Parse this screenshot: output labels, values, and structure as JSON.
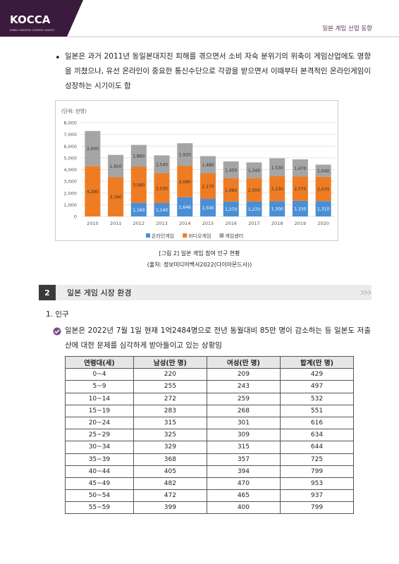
{
  "header": {
    "logo": "KOCCA",
    "logo_sub": "KOREA CREATIVE CONTENT AGENCY",
    "title": "일본 게임 산업 동향"
  },
  "bullet": "일본은 과거 2011년 동일본대지진 피해를 겪으면서 소비 자숙 분위기의 위축이 게임산업에도 영향을 끼쳤으나, 유선 온라인이 중요한 통신수단으로 각광을 받으면서 이때부터 본격적인 온라인게임이 성장하는 시기이도 함",
  "chart_data": {
    "type": "bar",
    "stacked": true,
    "unit_label": "(단위: 만명)",
    "categories": [
      "2010",
      "2011",
      "2012",
      "2013",
      "2014",
      "2015",
      "2016",
      "2017",
      "2018",
      "2019",
      "2020"
    ],
    "series": [
      {
        "name": "온라인게임",
        "color": "#4a8fd6",
        "values": [
          null,
          null,
          1160,
          1140,
          1646,
          1500,
          1270,
          1270,
          1300,
          1330,
          1310
        ],
        "value_labels": [
          null,
          null,
          "1,160",
          "1,140",
          "1,646",
          "1,500",
          "1,270",
          "1,270",
          "1,300",
          "1,330",
          "1,310"
        ]
      },
      {
        "name": "비디오게임",
        "color": "#ef7c22",
        "values": [
          4290,
          3340,
          3080,
          2530,
          2680,
          2170,
          1980,
          2000,
          2130,
          2070,
          2070
        ],
        "value_labels": [
          "4,290",
          "3,340",
          "3,080",
          "2,530",
          "2,680",
          "2,170",
          "1,980",
          "2,000",
          "2,130",
          "2,070",
          "2,070"
        ]
      },
      {
        "name": "게임센터",
        "color": "#a5a5a5",
        "values": [
          3000,
          1910,
          1860,
          1540,
          1920,
          1480,
          1450,
          1340,
          1530,
          1470,
          1040
        ],
        "value_labels": [
          "3,000",
          "1,910",
          "1,860",
          "1,540",
          "1,920",
          "1,480",
          "1,450",
          "1,340",
          "1,530",
          "1,470",
          "1,040"
        ]
      }
    ],
    "ylim": [
      0,
      8000
    ],
    "yticks": [
      0,
      {
        "value": 1000,
        "label": "1,000"
      },
      {
        "value": 2000,
        "label": "2,000"
      },
      {
        "value": 3000,
        "label": "3,000"
      },
      {
        "value": 4000,
        "label": "4,000"
      },
      {
        "value": 5000,
        "label": "5,000"
      },
      {
        "value": 6000,
        "label": "6,000"
      },
      {
        "value": 7000,
        "label": "7,000"
      },
      {
        "value": 8000,
        "label": "8,000"
      }
    ],
    "grid": true
  },
  "caption": "[그림 2] 일본 게임 참여 인구 현황",
  "source": "(출처: 정보미디어백서2022(다이아몬드사))",
  "section": {
    "number": "2",
    "title": "일본 게임 시장 환경"
  },
  "subsection": "1. 인구",
  "paragraph": "일본은 2022년 7월 1일 현재 1억2484명으로 전년 동월대비 85만 명이 감소하는 등 일본도 저출산에 대한 문제를 심각하게 받아들이고 있는 상황임",
  "table": {
    "header": [
      "연령대(세)",
      "남성(만 명)",
      "여성(만 명)",
      "합계(만 명)"
    ],
    "rows": [
      [
        "0~4",
        "220",
        "209",
        "429"
      ],
      [
        "5~9",
        "255",
        "243",
        "497"
      ],
      [
        "10~14",
        "272",
        "259",
        "532"
      ],
      [
        "15~19",
        "283",
        "268",
        "551"
      ],
      [
        "20~24",
        "315",
        "301",
        "616"
      ],
      [
        "25~29",
        "325",
        "309",
        "634"
      ],
      [
        "30~34",
        "329",
        "315",
        "644"
      ],
      [
        "35~39",
        "368",
        "357",
        "725"
      ],
      [
        "40~44",
        "405",
        "394",
        "799"
      ],
      [
        "45~49",
        "482",
        "470",
        "953"
      ],
      [
        "50~54",
        "472",
        "465",
        "937"
      ],
      [
        "55~59",
        "399",
        "400",
        "799"
      ]
    ]
  }
}
